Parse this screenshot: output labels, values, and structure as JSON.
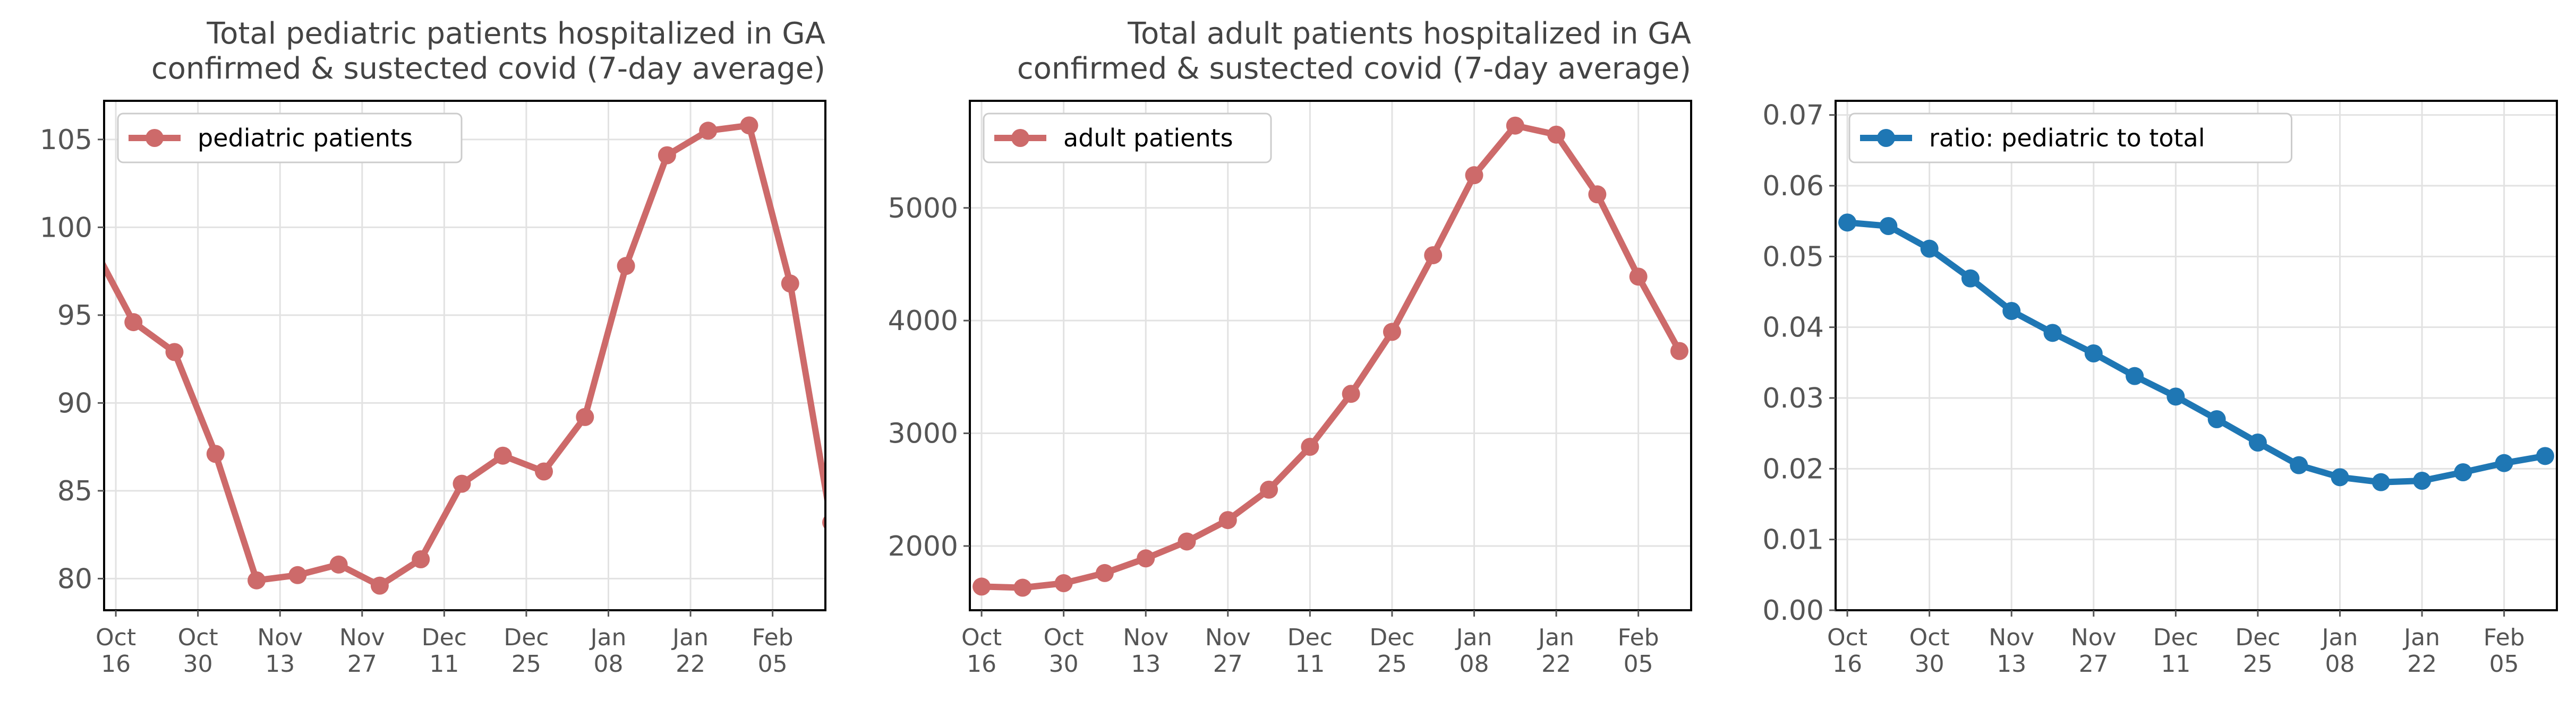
{
  "chart_data": [
    {
      "type": "line",
      "title": [
        "Total pediatric patients hospitalized in GA",
        "confirmed & sustected covid (7-day average)"
      ],
      "xlabel": "",
      "ylabel": "",
      "x": [
        "2020-10-12",
        "2020-10-19",
        "2020-10-26",
        "2020-11-02",
        "2020-11-09",
        "2020-11-16",
        "2020-11-23",
        "2020-11-30",
        "2020-12-07",
        "2020-12-14",
        "2020-12-21",
        "2020-12-28",
        "2021-01-04",
        "2021-01-11",
        "2021-01-18",
        "2021-01-25",
        "2021-02-01",
        "2021-02-08",
        "2021-02-15"
      ],
      "xlim": [
        "2020-10-14",
        "2021-02-14"
      ],
      "xticks": [
        {
          "date": "2020-10-16",
          "label": [
            "Oct",
            "16"
          ]
        },
        {
          "date": "2020-10-30",
          "label": [
            "Oct",
            "30"
          ]
        },
        {
          "date": "2020-11-13",
          "label": [
            "Nov",
            "13"
          ]
        },
        {
          "date": "2020-11-27",
          "label": [
            "Nov",
            "27"
          ]
        },
        {
          "date": "2020-12-11",
          "label": [
            "Dec",
            "11"
          ]
        },
        {
          "date": "2020-12-25",
          "label": [
            "Dec",
            "25"
          ]
        },
        {
          "date": "2021-01-08",
          "label": [
            "Jan",
            "08"
          ]
        },
        {
          "date": "2021-01-22",
          "label": [
            "Jan",
            "22"
          ]
        },
        {
          "date": "2021-02-05",
          "label": [
            "Feb",
            "05"
          ]
        }
      ],
      "ylim": [
        78.2,
        107.2
      ],
      "yticks": [
        80,
        85,
        90,
        95,
        100,
        105
      ],
      "ytick_labels": [
        "80",
        "85",
        "90",
        "95",
        "100",
        "105"
      ],
      "grid": true,
      "legend": "top-left",
      "series": [
        {
          "name": "pediatric patients",
          "color": "#cd6a6a",
          "values": [
            99.0,
            94.6,
            92.9,
            87.1,
            79.9,
            80.2,
            80.8,
            79.6,
            81.1,
            85.4,
            87.0,
            86.1,
            89.2,
            97.8,
            104.1,
            105.5,
            105.8,
            96.8,
            83.2
          ]
        }
      ]
    },
    {
      "type": "line",
      "title": [
        "Total adult patients hospitalized in GA",
        "confirmed & sustected covid (7-day average)"
      ],
      "xlabel": "",
      "ylabel": "",
      "x": [
        "2020-10-16",
        "2020-10-23",
        "2020-10-30",
        "2020-11-06",
        "2020-11-13",
        "2020-11-20",
        "2020-11-27",
        "2020-12-04",
        "2020-12-11",
        "2020-12-18",
        "2020-12-25",
        "2021-01-01",
        "2021-01-08",
        "2021-01-15",
        "2021-01-22",
        "2021-01-29",
        "2021-02-05",
        "2021-02-12"
      ],
      "xlim": [
        "2020-10-14",
        "2021-02-14"
      ],
      "xticks": [
        {
          "date": "2020-10-16",
          "label": [
            "Oct",
            "16"
          ]
        },
        {
          "date": "2020-10-30",
          "label": [
            "Oct",
            "30"
          ]
        },
        {
          "date": "2020-11-13",
          "label": [
            "Nov",
            "13"
          ]
        },
        {
          "date": "2020-11-27",
          "label": [
            "Nov",
            "27"
          ]
        },
        {
          "date": "2020-12-11",
          "label": [
            "Dec",
            "11"
          ]
        },
        {
          "date": "2020-12-25",
          "label": [
            "Dec",
            "25"
          ]
        },
        {
          "date": "2021-01-08",
          "label": [
            "Jan",
            "08"
          ]
        },
        {
          "date": "2021-01-22",
          "label": [
            "Jan",
            "22"
          ]
        },
        {
          "date": "2021-02-05",
          "label": [
            "Feb",
            "05"
          ]
        }
      ],
      "ylim": [
        1430,
        5950
      ],
      "yticks": [
        2000,
        3000,
        4000,
        5000
      ],
      "ytick_labels": [
        "2000",
        "3000",
        "4000",
        "5000"
      ],
      "grid": true,
      "legend": "top-left",
      "series": [
        {
          "name": "adult patients",
          "color": "#cd6a6a",
          "values": [
            1640,
            1630,
            1670,
            1760,
            1890,
            2040,
            2230,
            2500,
            2880,
            3350,
            3900,
            4580,
            5290,
            5730,
            5650,
            5120,
            4390,
            3730
          ]
        }
      ]
    },
    {
      "type": "line",
      "title": "",
      "xlabel": "",
      "ylabel": "",
      "x": [
        "2020-10-16",
        "2020-10-23",
        "2020-10-30",
        "2020-11-06",
        "2020-11-13",
        "2020-11-20",
        "2020-11-27",
        "2020-12-04",
        "2020-12-11",
        "2020-12-18",
        "2020-12-25",
        "2021-01-01",
        "2021-01-08",
        "2021-01-15",
        "2021-01-22",
        "2021-01-29",
        "2021-02-05",
        "2021-02-12"
      ],
      "xlim": [
        "2020-10-14",
        "2021-02-14"
      ],
      "xticks": [
        {
          "date": "2020-10-16",
          "label": [
            "Oct",
            "16"
          ]
        },
        {
          "date": "2020-10-30",
          "label": [
            "Oct",
            "30"
          ]
        },
        {
          "date": "2020-11-13",
          "label": [
            "Nov",
            "13"
          ]
        },
        {
          "date": "2020-11-27",
          "label": [
            "Nov",
            "27"
          ]
        },
        {
          "date": "2020-12-11",
          "label": [
            "Dec",
            "11"
          ]
        },
        {
          "date": "2020-12-25",
          "label": [
            "Dec",
            "25"
          ]
        },
        {
          "date": "2021-01-08",
          "label": [
            "Jan",
            "08"
          ]
        },
        {
          "date": "2021-01-22",
          "label": [
            "Jan",
            "22"
          ]
        },
        {
          "date": "2021-02-05",
          "label": [
            "Feb",
            "05"
          ]
        }
      ],
      "ylim": [
        0.0,
        0.072
      ],
      "yticks": [
        0.0,
        0.01,
        0.02,
        0.03,
        0.04,
        0.05,
        0.06,
        0.07
      ],
      "ytick_labels": [
        "0.00",
        "0.01",
        "0.02",
        "0.03",
        "0.04",
        "0.05",
        "0.06",
        "0.07"
      ],
      "grid": true,
      "legend": "top-left",
      "series": [
        {
          "name": "ratio: pediatric to total",
          "color": "#1f77b4",
          "values": [
            0.0548,
            0.0543,
            0.0511,
            0.0469,
            0.0423,
            0.0392,
            0.0363,
            0.0331,
            0.0302,
            0.027,
            0.0237,
            0.0205,
            0.0188,
            0.0181,
            0.0183,
            0.0195,
            0.0208,
            0.0218
          ]
        }
      ]
    }
  ]
}
